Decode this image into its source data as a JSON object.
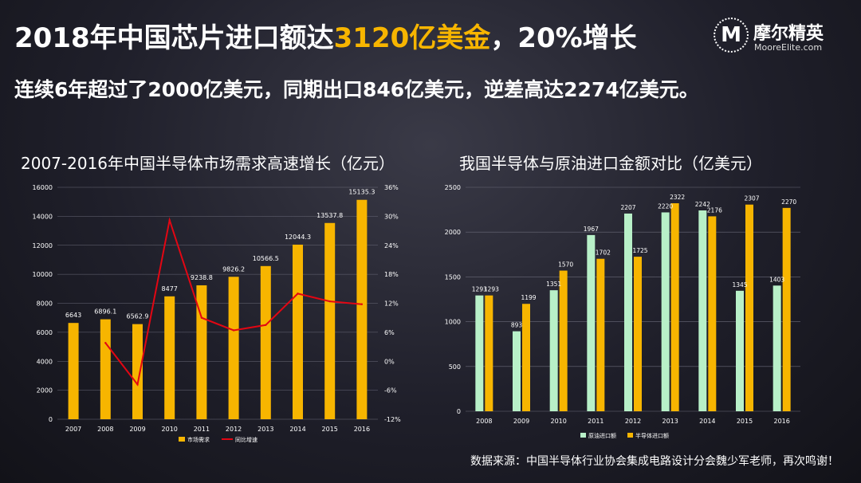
{
  "headline": {
    "part1": "2018年中国芯片进口额达",
    "highlight": "3120亿美金",
    "part2": "，20%增长"
  },
  "subline": "连续6年超过了2000亿美元，同期出口846亿美元，逆差高达2274亿美元。",
  "logo": {
    "badge": "M",
    "cn": "摩尔精英",
    "en": "MooreElite.com"
  },
  "source": "数据来源：中国半导体行业协会集成电路设计分会魏少军老师，再次鸣谢！",
  "colors": {
    "yellow": "#f7b500",
    "red": "#e30613",
    "green": "#b8f0c8"
  },
  "chart_data": [
    {
      "type": "bar",
      "title": "2007-2016年中国半导体市场需求高速增长（亿元）",
      "categories": [
        "2007",
        "2008",
        "2009",
        "2010",
        "2011",
        "2012",
        "2013",
        "2014",
        "2015",
        "2016"
      ],
      "series": [
        {
          "name": "市场需求",
          "type": "bar",
          "values": [
            6643,
            6896.1,
            6562.9,
            8477,
            9238.8,
            9826.2,
            10566.5,
            12044.3,
            13537.8,
            15135.3
          ],
          "labels": [
            "6643",
            "6896.1",
            "6562.9",
            "8477",
            "9238.8",
            "9826.2",
            "10566.5",
            "12044.3",
            "13537.8",
            "15135.3"
          ]
        },
        {
          "name": "同比增速",
          "type": "line",
          "axis": "right",
          "values": [
            null,
            3.8,
            -4.8,
            29.2,
            9.0,
            6.4,
            7.5,
            14.0,
            12.4,
            11.8
          ]
        }
      ],
      "ylim": [
        0,
        16000
      ],
      "yticks": [
        "0",
        "2000",
        "4000",
        "6000",
        "8000",
        "10000",
        "12000",
        "14000",
        "16000"
      ],
      "y2lim": [
        -12,
        36
      ],
      "y2ticks": [
        "-12%",
        "-6%",
        "0%",
        "6%",
        "12%",
        "18%",
        "24%",
        "30%",
        "36%"
      ],
      "legend": "bottom"
    },
    {
      "type": "bar",
      "title": "我国半导体与原油进口金额对比（亿美元）",
      "categories": [
        "2008",
        "2009",
        "2010",
        "2011",
        "2012",
        "2013",
        "2014",
        "2015",
        "2016"
      ],
      "series": [
        {
          "name": "原油进口额",
          "values": [
            1293,
            893,
            1351,
            1967,
            2207,
            2220,
            2242,
            1345,
            1403
          ],
          "labels": [
            "1293",
            "893",
            "1351",
            "1967",
            "2207",
            "2220",
            "2242",
            "1345",
            "1403"
          ]
        },
        {
          "name": "半导体进口额",
          "values": [
            1293,
            1199,
            1570,
            1702,
            1725,
            2322,
            2176,
            2307,
            2270
          ],
          "labels": [
            "1293",
            "1199",
            "1570",
            "1702",
            "1725",
            "2322",
            "2176",
            "2307",
            "2270"
          ]
        }
      ],
      "ylim": [
        0,
        2500
      ],
      "yticks": [
        "0",
        "500",
        "1000",
        "1500",
        "2000",
        "2500"
      ],
      "legend": "bottom"
    }
  ]
}
